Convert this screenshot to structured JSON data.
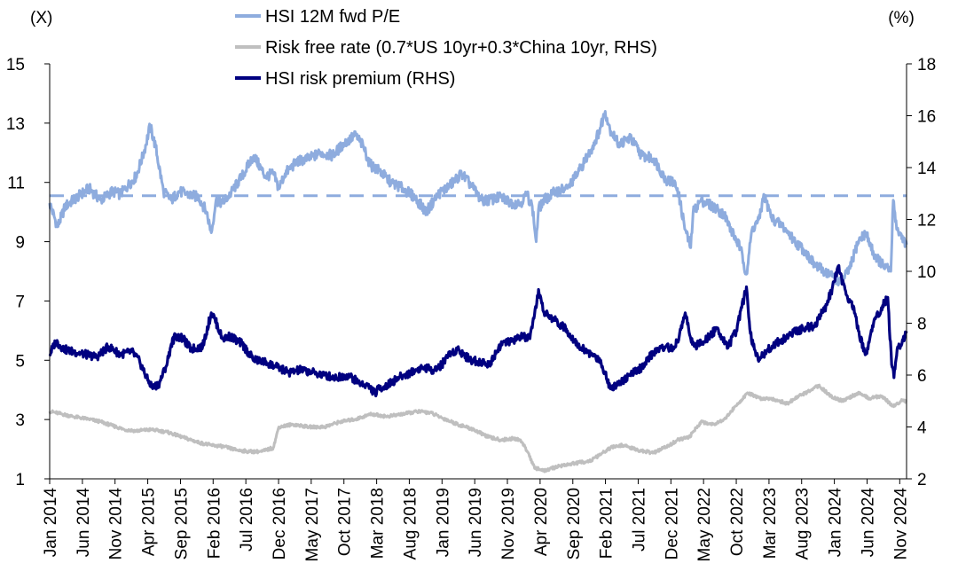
{
  "chart_data": {
    "type": "line",
    "title": "",
    "left_axis": {
      "unit_label": "(X)",
      "min": 1,
      "max": 15,
      "ticks": [
        1,
        3,
        5,
        7,
        9,
        11,
        13,
        15
      ]
    },
    "right_axis": {
      "unit_label": "(%)",
      "min": 2,
      "max": 18,
      "ticks": [
        2,
        4,
        6,
        8,
        10,
        12,
        14,
        16,
        18
      ]
    },
    "x_tick_labels": [
      "Jan 2014",
      "Jun 2014",
      "Nov 2014",
      "Apr 2015",
      "Sep 2015",
      "Feb 2016",
      "Jul 2016",
      "Dec 2016",
      "May 2017",
      "Oct 2017",
      "Mar 2018",
      "Aug 2018",
      "Jan 2019",
      "Jun 2019",
      "Nov 2019",
      "Apr 2020",
      "Sep 2020",
      "Feb 2021",
      "Jul 2021",
      "Dec 2021",
      "May 2022",
      "Oct 2022",
      "Mar 2023",
      "Aug 2023",
      "Jan 2024",
      "Jun 2024",
      "Nov 2024"
    ],
    "x_tick_positions": [
      2014.0,
      2014.417,
      2014.833,
      2015.25,
      2015.667,
      2016.083,
      2016.5,
      2016.917,
      2017.333,
      2017.75,
      2018.167,
      2018.583,
      2019.0,
      2019.417,
      2019.833,
      2020.25,
      2020.667,
      2021.083,
      2021.5,
      2021.917,
      2022.333,
      2022.75,
      2023.167,
      2023.583,
      2024.0,
      2024.417,
      2024.833
    ],
    "x_range": [
      2014.0,
      2024.92
    ],
    "legend_placement": "top-center",
    "grid": false,
    "series": [
      {
        "name": "HSI 12M fwd P/E",
        "axis": "left",
        "color": "#8EACDE",
        "x": [
          2014.0,
          2014.1,
          2014.2,
          2014.35,
          2014.5,
          2014.65,
          2014.8,
          2014.9,
          2015.0,
          2015.1,
          2015.2,
          2015.28,
          2015.35,
          2015.45,
          2015.55,
          2015.65,
          2015.75,
          2015.9,
          2016.0,
          2016.06,
          2016.12,
          2016.2,
          2016.3,
          2016.45,
          2016.6,
          2016.75,
          2016.85,
          2016.92,
          2017.0,
          2017.15,
          2017.3,
          2017.45,
          2017.6,
          2017.75,
          2017.9,
          2018.0,
          2018.08,
          2018.2,
          2018.35,
          2018.5,
          2018.65,
          2018.8,
          2018.95,
          2019.1,
          2019.25,
          2019.4,
          2019.5,
          2019.6,
          2019.75,
          2019.9,
          2020.0,
          2020.08,
          2020.15,
          2020.2,
          2020.23,
          2020.3,
          2020.45,
          2020.6,
          2020.75,
          2020.9,
          2021.0,
          2021.08,
          2021.14,
          2021.25,
          2021.4,
          2021.55,
          2021.7,
          2021.85,
          2021.95,
          2022.0,
          2022.1,
          2022.17,
          2022.2,
          2022.3,
          2022.45,
          2022.6,
          2022.7,
          2022.8,
          2022.88,
          2022.95,
          2023.05,
          2023.1,
          2023.2,
          2023.35,
          2023.5,
          2023.62,
          2023.75,
          2023.88,
          2024.0,
          2024.08,
          2024.2,
          2024.3,
          2024.4,
          2024.5,
          2024.62,
          2024.72,
          2024.75,
          2024.8,
          2024.88,
          2024.92
        ],
        "y": [
          10.3,
          9.5,
          10.2,
          10.5,
          10.8,
          10.4,
          10.7,
          10.6,
          10.9,
          11.2,
          12.0,
          12.9,
          12.2,
          10.7,
          10.4,
          10.7,
          10.6,
          10.5,
          10.0,
          9.3,
          10.4,
          10.3,
          10.6,
          11.2,
          11.9,
          11.2,
          11.3,
          10.8,
          11.3,
          11.7,
          11.8,
          12.0,
          11.9,
          12.3,
          12.6,
          12.2,
          11.6,
          11.4,
          11.0,
          10.8,
          10.5,
          10.0,
          10.6,
          10.9,
          11.3,
          10.8,
          10.4,
          10.4,
          10.5,
          10.3,
          10.3,
          10.6,
          10.2,
          9.0,
          10.1,
          10.4,
          10.7,
          10.8,
          11.4,
          12.1,
          12.7,
          13.4,
          12.8,
          12.3,
          12.5,
          11.9,
          11.8,
          11.1,
          11.0,
          10.8,
          9.4,
          8.8,
          10.0,
          10.4,
          10.2,
          9.9,
          9.3,
          8.8,
          7.9,
          9.4,
          9.8,
          10.6,
          9.8,
          9.5,
          9.0,
          8.7,
          8.2,
          8.0,
          7.8,
          7.6,
          8.1,
          9.0,
          9.3,
          8.6,
          8.2,
          8.0,
          10.4,
          9.4,
          9.1,
          8.9
        ]
      },
      {
        "name": "Risk free rate (0.7*US 10yr+0.3*China 10yr, RHS)",
        "axis": "right",
        "color": "#BFBFBF",
        "x": [
          2014.0,
          2014.15,
          2014.3,
          2014.5,
          2014.65,
          2014.8,
          2014.95,
          2015.1,
          2015.3,
          2015.5,
          2015.7,
          2015.9,
          2016.05,
          2016.2,
          2016.4,
          2016.55,
          2016.7,
          2016.85,
          2016.92,
          2017.1,
          2017.3,
          2017.5,
          2017.7,
          2017.9,
          2018.1,
          2018.3,
          2018.5,
          2018.7,
          2018.85,
          2019.0,
          2019.2,
          2019.4,
          2019.6,
          2019.75,
          2019.9,
          2020.0,
          2020.1,
          2020.18,
          2020.23,
          2020.3,
          2020.5,
          2020.7,
          2020.9,
          2021.0,
          2021.15,
          2021.3,
          2021.5,
          2021.7,
          2021.9,
          2022.0,
          2022.15,
          2022.3,
          2022.45,
          2022.6,
          2022.8,
          2022.9,
          2023.05,
          2023.2,
          2023.4,
          2023.55,
          2023.7,
          2023.8,
          2023.95,
          2024.1,
          2024.3,
          2024.45,
          2024.6,
          2024.75,
          2024.85,
          2024.92
        ],
        "y": [
          4.6,
          4.5,
          4.4,
          4.3,
          4.2,
          4.05,
          3.9,
          3.85,
          3.9,
          3.8,
          3.6,
          3.4,
          3.3,
          3.25,
          3.1,
          3.05,
          3.05,
          3.2,
          4.0,
          4.1,
          4.0,
          4.0,
          4.2,
          4.3,
          4.5,
          4.4,
          4.5,
          4.6,
          4.55,
          4.35,
          4.1,
          3.9,
          3.6,
          3.5,
          3.55,
          3.5,
          3.0,
          2.4,
          2.4,
          2.3,
          2.5,
          2.6,
          2.7,
          2.9,
          3.2,
          3.3,
          3.1,
          3.0,
          3.3,
          3.5,
          3.6,
          4.2,
          4.1,
          4.3,
          5.0,
          5.3,
          5.1,
          5.1,
          4.9,
          5.2,
          5.4,
          5.6,
          5.2,
          5.0,
          5.3,
          5.1,
          5.2,
          4.8,
          5.0,
          5.0
        ]
      },
      {
        "name": "HSI risk premium (RHS)",
        "axis": "right",
        "color": "#000080",
        "x": [
          2014.0,
          2014.08,
          2014.18,
          2014.3,
          2014.45,
          2014.6,
          2014.75,
          2014.9,
          2015.05,
          2015.15,
          2015.25,
          2015.32,
          2015.4,
          2015.5,
          2015.55,
          2015.6,
          2015.7,
          2015.8,
          2015.95,
          2016.06,
          2016.1,
          2016.2,
          2016.3,
          2016.45,
          2016.6,
          2016.75,
          2016.9,
          2017.05,
          2017.2,
          2017.35,
          2017.5,
          2017.65,
          2017.8,
          2017.95,
          2018.05,
          2018.15,
          2018.2,
          2018.3,
          2018.45,
          2018.6,
          2018.75,
          2018.9,
          2019.0,
          2019.05,
          2019.2,
          2019.35,
          2019.5,
          2019.6,
          2019.75,
          2019.9,
          2020.0,
          2020.12,
          2020.2,
          2020.23,
          2020.3,
          2020.45,
          2020.6,
          2020.75,
          2020.9,
          2021.0,
          2021.08,
          2021.14,
          2021.25,
          2021.4,
          2021.55,
          2021.7,
          2021.85,
          2021.95,
          2022.0,
          2022.1,
          2022.17,
          2022.22,
          2022.35,
          2022.5,
          2022.65,
          2022.75,
          2022.82,
          2022.88,
          2022.93,
          2022.98,
          2023.05,
          2023.15,
          2023.3,
          2023.45,
          2023.6,
          2023.75,
          2023.9,
          2024.0,
          2024.05,
          2024.15,
          2024.25,
          2024.32,
          2024.4,
          2024.5,
          2024.6,
          2024.68,
          2024.73,
          2024.76,
          2024.8,
          2024.86,
          2024.92
        ],
        "y": [
          6.8,
          7.3,
          7.0,
          6.9,
          6.8,
          6.7,
          7.1,
          6.8,
          6.9,
          6.5,
          5.8,
          5.5,
          5.7,
          6.5,
          7.2,
          7.5,
          7.4,
          7.0,
          7.1,
          8.4,
          8.2,
          7.4,
          7.5,
          7.2,
          6.6,
          6.5,
          6.3,
          6.1,
          6.2,
          6.1,
          6.0,
          5.9,
          6.0,
          5.7,
          5.6,
          5.3,
          5.5,
          5.6,
          5.9,
          6.1,
          6.3,
          6.2,
          6.4,
          6.7,
          7.0,
          6.6,
          6.5,
          6.4,
          7.2,
          7.3,
          7.5,
          7.4,
          8.6,
          9.3,
          8.4,
          8.1,
          7.7,
          7.1,
          6.8,
          6.6,
          6.1,
          5.5,
          5.7,
          6.0,
          6.3,
          6.9,
          7.1,
          7.0,
          7.3,
          8.4,
          7.4,
          7.1,
          7.3,
          7.8,
          7.1,
          7.7,
          8.6,
          9.4,
          7.6,
          7.0,
          6.6,
          7.0,
          7.3,
          7.6,
          7.8,
          7.9,
          8.7,
          9.6,
          10.2,
          9.1,
          8.6,
          7.5,
          6.8,
          8.0,
          8.6,
          9.0,
          6.4,
          5.9,
          7.0,
          7.2,
          7.7
        ]
      },
      {
        "name": "",
        "axis": "left",
        "color": "#8EACDE",
        "style": "dashed",
        "x": [
          2014.0,
          2024.92
        ],
        "y": [
          10.55,
          10.55
        ]
      }
    ]
  }
}
